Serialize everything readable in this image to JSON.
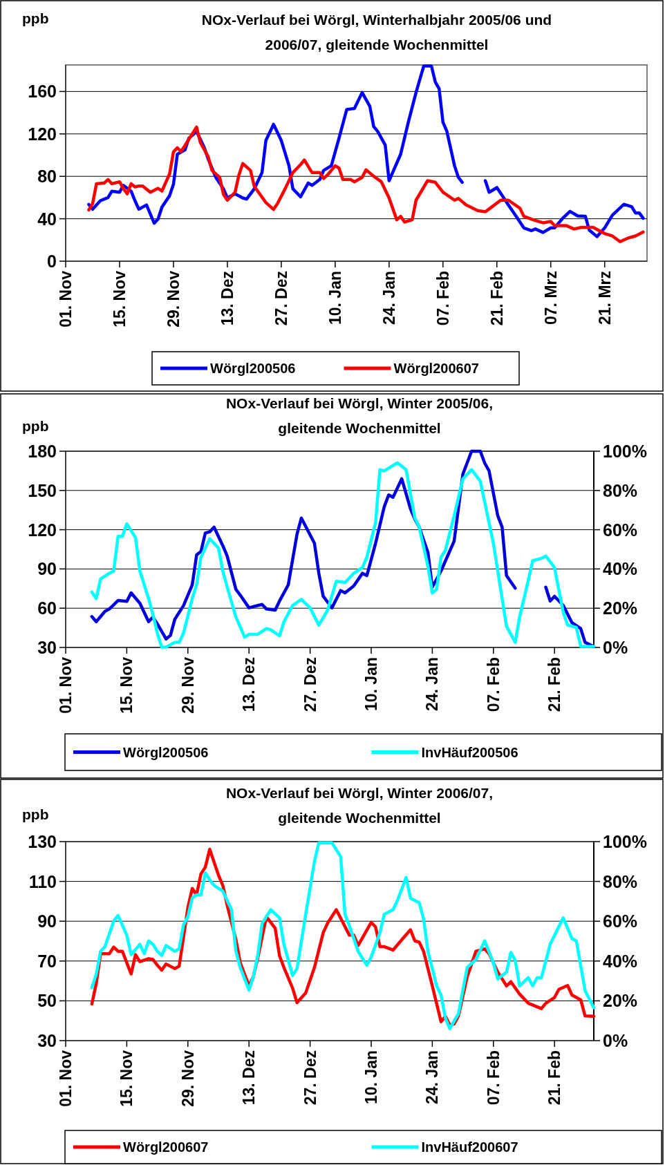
{
  "chart_data": [
    {
      "type": "line",
      "title": "NOx-Verlauf bei Wörgl, Winterhalbjahr 2005/06 und 2006/07, gleitende Wochenmittel",
      "ylabel": "ppb",
      "xlim": [
        "2005-11-01",
        "2006-04-01"
      ],
      "xticks": [
        {
          "value": "2005-11-01",
          "label": "01. Nov"
        },
        {
          "value": "2005-11-15",
          "label": "15. Nov"
        },
        {
          "value": "2005-11-29",
          "label": "29. Nov"
        },
        {
          "value": "2005-12-13",
          "label": "13. Dez"
        },
        {
          "value": "2005-12-27",
          "label": "27. Dez"
        },
        {
          "value": "2006-01-10",
          "label": "10. Jan"
        },
        {
          "value": "2006-01-24",
          "label": "24. Jan"
        },
        {
          "value": "2006-02-07",
          "label": "07. Feb"
        },
        {
          "value": "2006-02-21",
          "label": "21. Feb"
        },
        {
          "value": "2006-03-07",
          "label": "07. Mrz"
        },
        {
          "value": "2006-03-21",
          "label": "21. Mrz"
        }
      ],
      "ylim": [
        0,
        185
      ],
      "yticks": [
        0,
        40,
        80,
        120,
        160
      ],
      "grid": "y",
      "legend": "bottom",
      "series": [
        {
          "name": "Wörgl200506",
          "color": "#0000ff",
          "x": [
            "2005-11-07",
            "2005-11-08",
            "2005-11-10",
            "2005-11-12",
            "2005-11-13",
            "2005-11-15",
            "2005-11-16",
            "2005-11-18",
            "2005-11-19",
            "2005-11-20",
            "2005-11-22",
            "2005-11-23",
            "2005-11-24",
            "2005-11-25",
            "2005-11-26",
            "2005-11-28",
            "2005-11-29",
            "2005-11-30",
            "2005-12-02",
            "2005-12-03",
            "2005-12-04",
            "2005-12-05",
            "2005-12-07",
            "2005-12-08",
            "2005-12-10",
            "2005-12-12",
            "2005-12-13",
            "2005-12-15",
            "2005-12-17",
            "2005-12-18",
            "2005-12-20",
            "2005-12-22",
            "2005-12-23",
            "2005-12-25",
            "2005-12-27",
            "2005-12-29",
            "2005-12-30",
            "2006-01-01",
            "2006-01-03",
            "2006-01-04",
            "2006-01-06",
            "2006-01-07",
            "2006-01-09",
            "2006-01-11",
            "2006-01-13",
            "2006-01-15",
            "2006-01-17",
            "2006-01-19",
            "2006-01-20",
            "2006-01-21",
            "2006-01-23",
            "2006-01-24",
            "2006-01-27",
            "2006-01-29",
            "2006-01-31",
            "2006-02-02",
            "2006-02-04",
            "2006-02-05",
            "2006-02-06",
            "2006-02-07",
            "2006-02-08",
            "2006-02-10",
            "2006-02-11",
            "2006-02-12",
            "2006-02-15",
            "2006-02-18",
            "2006-02-19",
            "2006-02-21",
            "2006-02-22",
            "2006-02-24",
            "2006-02-26",
            "2006-02-28",
            "2006-03-02",
            "2006-03-03",
            "2006-03-05",
            "2006-03-07",
            "2006-03-08",
            "2006-03-10",
            "2006-03-12",
            "2006-03-14",
            "2006-03-16",
            "2006-03-17",
            "2006-03-19",
            "2006-03-21",
            "2006-03-23",
            "2006-03-26",
            "2006-03-28",
            "2006-03-29",
            "2006-03-30",
            "2006-03-31"
          ],
          "values": [
            53.5,
            49,
            57,
            60,
            66,
            65,
            71.5,
            66,
            57,
            49,
            53,
            44.4,
            35.8,
            39.7,
            51,
            61.8,
            72.6,
            100.8,
            105,
            116,
            119,
            122.5,
            107,
            96.5,
            79,
            68,
            59.6,
            63.5,
            59.6,
            58.5,
            68.3,
            83.5,
            113.8,
            129,
            113.8,
            90,
            68.3,
            60.7,
            73.7,
            71.5,
            77,
            85.6,
            90,
            116,
            143,
            144,
            159,
            146,
            127,
            122.5,
            109.5,
            75.9,
            100.8,
            131,
            159,
            184,
            184,
            169,
            162.6,
            131,
            122.5,
            90,
            79,
            74.4,
            null,
            75.9,
            65,
            69.4,
            64,
            53,
            42.3,
            31.4,
            28.8,
            30.4,
            27.1,
            31.4,
            31.4,
            40.1,
            47,
            42.7,
            42.3,
            29.3,
            23.2,
            31.4,
            43.4,
            53.6,
            51.4,
            45.5,
            45.5,
            40.5
          ]
        },
        {
          "name": "Wörgl200607",
          "color": "#ff0000",
          "x": [
            "2005-11-07",
            "2005-11-08",
            "2005-11-09",
            "2005-11-11",
            "2005-11-12",
            "2005-11-13",
            "2005-11-15",
            "2005-11-16",
            "2005-11-17",
            "2005-11-18",
            "2005-11-19",
            "2005-11-20",
            "2005-11-21",
            "2005-11-23",
            "2005-11-25",
            "2005-11-26",
            "2005-11-28",
            "2005-11-29",
            "2005-11-30",
            "2005-12-01",
            "2005-12-03",
            "2005-12-05",
            "2005-12-06",
            "2005-12-08",
            "2005-12-09",
            "2005-12-11",
            "2005-12-12",
            "2005-12-13",
            "2005-12-15",
            "2005-12-16",
            "2005-12-17",
            "2005-12-19",
            "2005-12-20",
            "2005-12-23",
            "2005-12-25",
            "2005-12-26",
            "2005-12-28",
            "2005-12-30",
            "2006-01-01",
            "2006-01-02",
            "2006-01-04",
            "2006-01-06",
            "2006-01-07",
            "2006-01-08",
            "2006-01-10",
            "2006-01-11",
            "2006-01-12",
            "2006-01-14",
            "2006-01-15",
            "2006-01-17",
            "2006-01-18",
            "2006-01-20",
            "2006-01-22",
            "2006-01-24",
            "2006-01-26",
            "2006-01-27",
            "2006-01-28",
            "2006-01-30",
            "2006-01-31",
            "2006-02-03",
            "2006-02-05",
            "2006-02-07",
            "2006-02-10",
            "2006-02-11",
            "2006-02-13",
            "2006-02-16",
            "2006-02-18",
            "2006-02-20",
            "2006-02-22",
            "2006-02-24",
            "2006-02-27",
            "2006-02-28",
            "2006-03-03",
            "2006-03-05",
            "2006-03-07",
            "2006-03-08",
            "2006-03-11",
            "2006-03-13",
            "2006-03-15",
            "2006-03-18",
            "2006-03-21",
            "2006-03-23",
            "2006-03-25",
            "2006-03-27",
            "2006-03-29",
            "2006-03-31"
          ],
          "values": [
            48.3,
            54.2,
            73,
            73.7,
            77,
            73,
            74.8,
            68.3,
            63.5,
            73,
            70,
            70.9,
            70.9,
            65,
            68.7,
            66.1,
            82.4,
            103,
            106.9,
            103.4,
            115,
            126.4,
            111.7,
            98.6,
            85.6,
            79,
            62.9,
            57.5,
            65,
            81.3,
            92.1,
            85.6,
            70.5,
            55.3,
            48.8,
            54.2,
            68.3,
            83.5,
            91,
            95.4,
            83.5,
            83.5,
            78,
            81.3,
            90,
            87.8,
            77,
            77,
            74.8,
            79,
            86.1,
            80.2,
            74.8,
            59.6,
            39,
            42.3,
            36.9,
            39,
            57.5,
            75.9,
            74.4,
            65,
            57.5,
            59.2,
            53.1,
            47.7,
            46.6,
            52,
            57.5,
            57.5,
            49.9,
            42.3,
            38.4,
            36.2,
            37.5,
            33.6,
            33.6,
            30.4,
            31.9,
            31.9,
            26,
            23.8,
            18.4,
            21.7,
            23.8,
            27.5
          ]
        }
      ]
    },
    {
      "type": "line",
      "title": "NOx-Verlauf bei Wörgl, Winter 2005/06, gleitende Wochenmittel",
      "ylabel": "ppb",
      "xlim": [
        "2005-11-01",
        "2006-03-02"
      ],
      "xticks": [
        {
          "value": "2005-11-01",
          "label": "01. Nov"
        },
        {
          "value": "2005-11-15",
          "label": "15. Nov"
        },
        {
          "value": "2005-11-29",
          "label": "29. Nov"
        },
        {
          "value": "2005-12-13",
          "label": "13. Dez"
        },
        {
          "value": "2005-12-27",
          "label": "27. Dez"
        },
        {
          "value": "2006-01-10",
          "label": "10. Jan"
        },
        {
          "value": "2006-01-24",
          "label": "24. Jan"
        },
        {
          "value": "2006-02-07",
          "label": "07. Feb"
        },
        {
          "value": "2006-02-21",
          "label": "21. Feb"
        }
      ],
      "ylim": [
        30,
        180
      ],
      "yticks": [
        30,
        60,
        90,
        120,
        150,
        180
      ],
      "y2lim": [
        0,
        100
      ],
      "y2ticks": [
        {
          "value": 0,
          "label": "0%"
        },
        {
          "value": 20,
          "label": "20%"
        },
        {
          "value": 40,
          "label": "40%"
        },
        {
          "value": 60,
          "label": "60%"
        },
        {
          "value": 80,
          "label": "80%"
        },
        {
          "value": 100,
          "label": "100%"
        }
      ],
      "grid": "y",
      "legend": "bottom",
      "series": [
        {
          "name": "Wörgl200506",
          "color": "#0000dd",
          "x": [
            "2005-11-07",
            "2005-11-08",
            "2005-11-10",
            "2005-11-11",
            "2005-11-13",
            "2005-11-15",
            "2005-11-16",
            "2005-11-18",
            "2005-11-20",
            "2005-11-21",
            "2005-11-22",
            "2005-11-24",
            "2005-11-25",
            "2005-11-26",
            "2005-11-28",
            "2005-11-30",
            "2005-12-01",
            "2005-12-02",
            "2005-12-03",
            "2005-12-04",
            "2005-12-05",
            "2005-12-07",
            "2005-12-08",
            "2005-12-10",
            "2005-12-11",
            "2005-12-13",
            "2005-12-14",
            "2005-12-16",
            "2005-12-17",
            "2005-12-19",
            "2005-12-20",
            "2005-12-22",
            "2005-12-24",
            "2005-12-25",
            "2005-12-28",
            "2005-12-29",
            "2005-12-30",
            "2006-01-01",
            "2006-01-03",
            "2006-01-04",
            "2006-01-06",
            "2006-01-08",
            "2006-01-09",
            "2006-01-11",
            "2006-01-13",
            "2006-01-14",
            "2006-01-15",
            "2006-01-17",
            "2006-01-19",
            "2006-01-20",
            "2006-01-21",
            "2006-01-23",
            "2006-01-24",
            "2006-01-26",
            "2006-01-29",
            "2006-01-31",
            "2006-02-02",
            "2006-02-04",
            "2006-02-05",
            "2006-02-06",
            "2006-02-08",
            "2006-02-09",
            "2006-02-10",
            "2006-02-12",
            "2006-02-15",
            "2006-02-19",
            "2006-02-20",
            "2006-02-21",
            "2006-02-23",
            "2006-02-25",
            "2006-02-27",
            "2006-02-28",
            "2006-03-02"
          ],
          "values": [
            53.6,
            49.7,
            57.6,
            59.4,
            65.9,
            65.2,
            71.7,
            63.8,
            49.7,
            53.2,
            48,
            36.5,
            39.2,
            51.5,
            62,
            77.9,
            100.8,
            103.4,
            117.5,
            118.4,
            121.9,
            107.8,
            99.9,
            74.4,
            70,
            60.3,
            61.2,
            62.9,
            59.4,
            58.5,
            65.6,
            77.9,
            116.6,
            128.9,
            109.6,
            86.7,
            69.1,
            60.3,
            73.5,
            71.7,
            77,
            86.7,
            84.9,
            109.6,
            137.7,
            146.6,
            144.8,
            158.9,
            136,
            128.1,
            121.9,
            102.6,
            76.1,
            88.5,
            111.3,
            162.4,
            180,
            180,
            171,
            165,
            130.7,
            121.9,
            84.9,
            75.3,
            null,
            76.1,
            65.5,
            69.1,
            62.1,
            48.9,
            44.4,
            33.9,
            30.7
          ]
        },
        {
          "name": "InvHäuf200506",
          "color": "#00ffff",
          "axis": "y2",
          "x": [
            "2005-11-07",
            "2005-11-08",
            "2005-11-09",
            "2005-11-11",
            "2005-11-12",
            "2005-11-13",
            "2005-11-14",
            "2005-11-15",
            "2005-11-17",
            "2005-11-18",
            "2005-11-20",
            "2005-11-21",
            "2005-11-22",
            "2005-11-23",
            "2005-11-24",
            "2005-11-26",
            "2005-11-27",
            "2005-11-28",
            "2005-11-30",
            "2005-12-01",
            "2005-12-02",
            "2005-12-04",
            "2005-12-06",
            "2005-12-07",
            "2005-12-08",
            "2005-12-10",
            "2005-12-12",
            "2005-12-13",
            "2005-12-15",
            "2005-12-17",
            "2005-12-18",
            "2005-12-20",
            "2005-12-21",
            "2005-12-23",
            "2005-12-25",
            "2005-12-27",
            "2005-12-29",
            "2005-12-31",
            "2006-01-02",
            "2006-01-04",
            "2006-01-06",
            "2006-01-08",
            "2006-01-09",
            "2006-01-11",
            "2006-01-12",
            "2006-01-13",
            "2006-01-16",
            "2006-01-18",
            "2006-01-20",
            "2006-01-21",
            "2006-01-23",
            "2006-01-24",
            "2006-01-25",
            "2006-01-26",
            "2006-01-27",
            "2006-01-29",
            "2006-01-31",
            "2006-02-02",
            "2006-02-04",
            "2006-02-07",
            "2006-02-09",
            "2006-02-10",
            "2006-02-12",
            "2006-02-13",
            "2006-02-15",
            "2006-02-16",
            "2006-02-18",
            "2006-02-19",
            "2006-02-21",
            "2006-02-23",
            "2006-02-24",
            "2006-02-26",
            "2006-02-27",
            "2006-03-02"
          ],
          "values": [
            28.2,
            24.9,
            34.9,
            37.8,
            39,
            56.6,
            56.6,
            63,
            56,
            39,
            24.9,
            16.7,
            7.3,
            0.2,
            0.2,
            2.6,
            2.6,
            7.3,
            24.9,
            31.9,
            46,
            55.4,
            50.7,
            39,
            30.8,
            15.5,
            5.2,
            6.7,
            6.7,
            9.6,
            9,
            5.9,
            13.1,
            21.4,
            24.5,
            20.2,
            11.4,
            19,
            33.7,
            33.1,
            37.8,
            40.7,
            46,
            63.6,
            90.6,
            90,
            94.1,
            90.6,
            66,
            61.3,
            41.3,
            27.8,
            29.6,
            46,
            49.5,
            67.1,
            85.9,
            90.6,
            84.7,
            53,
            24.9,
            10.8,
            2.6,
            15.5,
            34.3,
            44.2,
            45.4,
            46.6,
            40.7,
            17.8,
            11.4,
            10.2,
            0.5,
            0.5
          ]
        }
      ]
    },
    {
      "type": "line",
      "title": "NOx-Verlauf bei Wörgl, Winter 2006/07, gleitende Wochenmittel",
      "ylabel": "ppb",
      "xlim": [
        "2006-11-01",
        "2007-03-02"
      ],
      "xticks": [
        {
          "value": "2006-11-01",
          "label": "01. Nov"
        },
        {
          "value": "2006-11-15",
          "label": "15. Nov"
        },
        {
          "value": "2006-11-29",
          "label": "29. Nov"
        },
        {
          "value": "2006-12-13",
          "label": "13. Dez"
        },
        {
          "value": "2006-12-27",
          "label": "27. Dez"
        },
        {
          "value": "2007-01-10",
          "label": "10. Jan"
        },
        {
          "value": "2007-01-24",
          "label": "24. Jan"
        },
        {
          "value": "2007-02-07",
          "label": "07. Feb"
        },
        {
          "value": "2007-02-21",
          "label": "21. Feb"
        }
      ],
      "ylim": [
        30,
        130
      ],
      "yticks": [
        30,
        50,
        70,
        90,
        110,
        130
      ],
      "y2lim": [
        0,
        100
      ],
      "y2ticks": [
        {
          "value": 0,
          "label": "0%"
        },
        {
          "value": 20,
          "label": "20%"
        },
        {
          "value": 40,
          "label": "40%"
        },
        {
          "value": 60,
          "label": "60%"
        },
        {
          "value": 80,
          "label": "80%"
        },
        {
          "value": 100,
          "label": "100%"
        }
      ],
      "grid": "y",
      "legend": "bottom",
      "series": [
        {
          "name": "Wörgl200607",
          "color": "#ff0000",
          "x": [
            "2006-11-07",
            "2006-11-08",
            "2006-11-09",
            "2006-11-11",
            "2006-11-12",
            "2006-11-13",
            "2006-11-14",
            "2006-11-15",
            "2006-11-16",
            "2006-11-17",
            "2006-11-18",
            "2006-11-20",
            "2006-11-21",
            "2006-11-22",
            "2006-11-23",
            "2006-11-24",
            "2006-11-26",
            "2006-11-27",
            "2006-11-28",
            "2006-11-29",
            "2006-11-30",
            "2006-12-01",
            "2006-12-02",
            "2006-12-03",
            "2006-12-04",
            "2006-12-06",
            "2006-12-07",
            "2006-12-08",
            "2006-12-10",
            "2006-12-11",
            "2006-12-13",
            "2006-12-14",
            "2006-12-15",
            "2006-12-17",
            "2006-12-19",
            "2006-12-20",
            "2006-12-21",
            "2006-12-23",
            "2006-12-24",
            "2006-12-26",
            "2006-12-28",
            "2006-12-30",
            "2006-12-31",
            "2007-01-02",
            "2007-01-05",
            "2007-01-06",
            "2007-01-07",
            "2007-01-10",
            "2007-01-11",
            "2007-01-12",
            "2007-01-13",
            "2007-01-15",
            "2007-01-17",
            "2007-01-19",
            "2007-01-20",
            "2007-01-21",
            "2007-01-22",
            "2007-01-24",
            "2007-01-26",
            "2007-01-27",
            "2007-01-28",
            "2007-01-29",
            "2007-01-30",
            "2007-02-01",
            "2007-02-03",
            "2007-02-05",
            "2007-02-06",
            "2007-02-08",
            "2007-02-10",
            "2007-02-11",
            "2007-02-13",
            "2007-02-15",
            "2007-02-18",
            "2007-02-19",
            "2007-02-21",
            "2007-02-22",
            "2007-02-24",
            "2007-02-25",
            "2007-02-27",
            "2007-02-28",
            "2007-03-02"
          ],
          "values": [
            48.4,
            58.7,
            73.7,
            73.7,
            77,
            74.9,
            74.9,
            69.1,
            63.5,
            73.2,
            69.7,
            71.2,
            70.8,
            67.9,
            65.4,
            68.5,
            66.2,
            67.4,
            81.9,
            96.9,
            106.5,
            103.3,
            113.8,
            117.2,
            126.2,
            113.2,
            108,
            98.1,
            80.7,
            69.1,
            57.5,
            62.1,
            71.4,
            92.3,
            86.5,
            72.6,
            66.8,
            56.3,
            49.1,
            54,
            66.8,
            84.2,
            89,
            95.8,
            83,
            83,
            77.8,
            89.4,
            87.1,
            77.2,
            77.2,
            75.5,
            80.7,
            85.7,
            80.1,
            79.5,
            74.9,
            57.5,
            39.5,
            42.2,
            37.8,
            38.4,
            42.4,
            62.1,
            74.9,
            76.1,
            73.7,
            64.5,
            57.5,
            59.6,
            53.4,
            48.8,
            46.1,
            48.8,
            51.7,
            55.8,
            57.7,
            52.9,
            50.5,
            42.4,
            42.2
          ]
        },
        {
          "name": "InvHäuf200607",
          "color": "#00ffff",
          "axis": "y2",
          "x": [
            "2006-11-07",
            "2006-11-08",
            "2006-11-09",
            "2006-11-10",
            "2006-11-12",
            "2006-11-13",
            "2006-11-15",
            "2006-11-16",
            "2006-11-18",
            "2006-11-19",
            "2006-11-20",
            "2006-11-21",
            "2006-11-22",
            "2006-11-23",
            "2006-11-24",
            "2006-11-26",
            "2006-11-27",
            "2006-11-28",
            "2006-11-29",
            "2006-11-30",
            "2006-12-01",
            "2006-12-02",
            "2006-12-03",
            "2006-12-04",
            "2006-12-05",
            "2006-12-07",
            "2006-12-09",
            "2006-12-10",
            "2006-12-11",
            "2006-12-13",
            "2006-12-14",
            "2006-12-15",
            "2006-12-16",
            "2006-12-18",
            "2006-12-20",
            "2006-12-21",
            "2006-12-23",
            "2006-12-24",
            "2006-12-26",
            "2006-12-28",
            "2006-12-29",
            "2007-01-01",
            "2007-01-03",
            "2007-01-04",
            "2007-01-05",
            "2007-01-07",
            "2007-01-09",
            "2007-01-10",
            "2007-01-12",
            "2007-01-13",
            "2007-01-15",
            "2007-01-16",
            "2007-01-18",
            "2007-01-19",
            "2007-01-21",
            "2007-01-22",
            "2007-01-23",
            "2007-01-25",
            "2007-01-26",
            "2007-01-27",
            "2007-01-28",
            "2007-01-30",
            "2007-02-01",
            "2007-02-03",
            "2007-02-05",
            "2007-02-07",
            "2007-02-08",
            "2007-02-10",
            "2007-02-11",
            "2007-02-12",
            "2007-02-13",
            "2007-02-15",
            "2007-02-16",
            "2007-02-17",
            "2007-02-18",
            "2007-02-20",
            "2007-02-23",
            "2007-02-25",
            "2007-02-26",
            "2007-02-28",
            "2007-03-02"
          ],
          "values": [
            26.6,
            33.3,
            44.9,
            47.2,
            60,
            62.9,
            53,
            43.2,
            48.4,
            43.7,
            50.1,
            48.4,
            44.9,
            42.8,
            47.8,
            44.9,
            46.1,
            58.2,
            62.3,
            71.6,
            73.3,
            73.3,
            84.3,
            80.9,
            78,
            75.1,
            65.8,
            44.9,
            36.7,
            25.4,
            32.1,
            42.6,
            58.8,
            65.8,
            61.7,
            48.4,
            32.7,
            36.2,
            63.5,
            90.1,
            99.4,
            99.4,
            92.5,
            63.5,
            57.7,
            44.9,
            37.9,
            42,
            54.2,
            63.5,
            65.8,
            70.4,
            82,
            71.6,
            69.3,
            61.1,
            44.9,
            27.5,
            22.9,
            11.3,
            6,
            13.6,
            36.8,
            40.8,
            50.1,
            39.1,
            31,
            34.5,
            44.3,
            40.3,
            27.5,
            31.6,
            27.5,
            31.6,
            31.6,
            48.4,
            61.7,
            51.3,
            50.1,
            25.2,
            16.5
          ]
        }
      ]
    }
  ]
}
